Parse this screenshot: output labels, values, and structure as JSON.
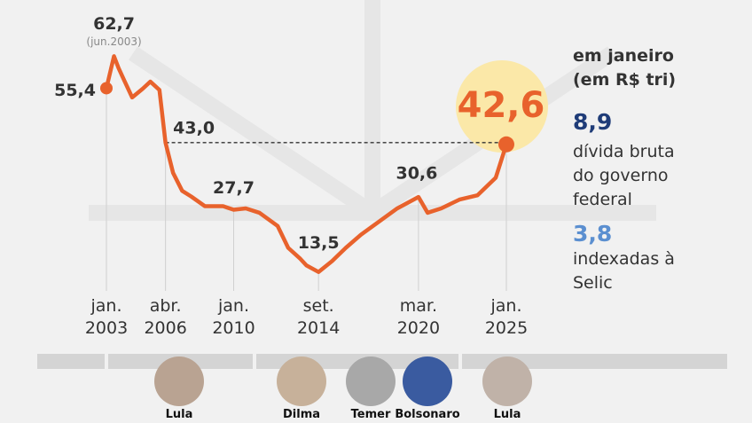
{
  "chart_data": {
    "type": "line",
    "x": [
      "2003-01",
      "2003-06",
      "2003-09",
      "2004-01",
      "2004-06",
      "2005-01",
      "2005-06",
      "2005-12",
      "2006-04",
      "2006-09",
      "2007-03",
      "2007-09",
      "2008-06",
      "2009-06",
      "2010-01",
      "2010-09",
      "2011-06",
      "2012-06",
      "2013-01",
      "2013-09",
      "2014-01",
      "2014-09",
      "2015-06",
      "2016-03",
      "2017-01",
      "2018-01",
      "2019-01",
      "2020-03",
      "2020-09",
      "2021-06",
      "2022-06",
      "2023-06",
      "2024-06",
      "2025-01"
    ],
    "series": [
      {
        "color": "#e8622c",
        "values": [
          55.4,
          62.7,
          60,
          57,
          53.3,
          55.3,
          56.9,
          55,
          43.0,
          36.1,
          32,
          30.7,
          28.5,
          28.5,
          27.7,
          28,
          27,
          24,
          19,
          16.5,
          15,
          13.5,
          16,
          19,
          22,
          25,
          28,
          30.6,
          27,
          28,
          30,
          31,
          35,
          42.6
        ],
        "value_labels": [
          "55,4",
          "62,7",
          null,
          null,
          null,
          null,
          null,
          null,
          "43,0",
          null,
          null,
          null,
          null,
          null,
          "27,7",
          null,
          null,
          null,
          null,
          null,
          null,
          "13,5",
          null,
          null,
          null,
          null,
          null,
          "30,6",
          null,
          null,
          null,
          null,
          null,
          "42,6"
        ]
      }
    ],
    "peak_note": "(jun.2003)",
    "xlim": [
      "2003-01",
      "2025-01"
    ],
    "ylim": [
      10,
      65
    ],
    "xticks": [
      {
        "value": "2003-01",
        "label": "jan.\n2003"
      },
      {
        "value": "2006-04",
        "label": "abr.\n2006"
      },
      {
        "value": "2010-01",
        "label": "jan.\n2010"
      },
      {
        "value": "2014-09",
        "label": "set.\n2014"
      },
      {
        "value": "2020-03",
        "label": "mar.\n2020"
      },
      {
        "value": "2025-01",
        "label": "jan.\n2025"
      }
    ],
    "side": {
      "title": "em janeiro\n(em R$ tri)",
      "total": "8,9",
      "total_text": "dívida bruta\ndo governo\nfederal",
      "selic": "3,8",
      "selic_text": "indexadas à\nSelic"
    },
    "presidents": [
      "Lula",
      "Dilma",
      "Temer",
      "Bolsonaro",
      "Lula"
    ]
  }
}
